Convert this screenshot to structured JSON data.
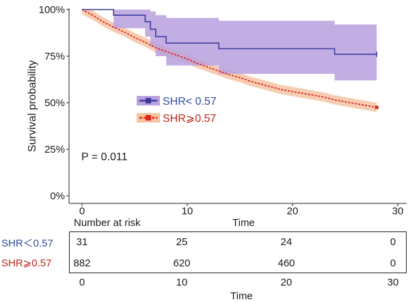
{
  "chart_data": {
    "type": "line",
    "chart_kind": "kaplan-meier survival",
    "ylabel": "Survival probability",
    "xlabel": "Time",
    "xlim": [
      -1,
      30.5
    ],
    "ylim": [
      0,
      1
    ],
    "x_ticks": [
      "0",
      "10",
      "20",
      "30"
    ],
    "y_ticks": [
      "0%",
      "25%",
      "50%",
      "75%",
      "100%"
    ],
    "legend_position": "center-left",
    "annotation": "P = 0.011",
    "series": [
      {
        "name": "SHR< 0.57",
        "color": "#3b3b9c",
        "band_color": "#b9a0de",
        "line_style": "solid",
        "steps": [
          [
            0,
            1.0
          ],
          [
            3,
            0.97
          ],
          [
            6,
            0.935
          ],
          [
            6.5,
            0.895
          ],
          [
            7,
            0.855
          ],
          [
            8,
            0.82
          ],
          [
            13,
            0.79
          ],
          [
            24,
            0.76
          ],
          [
            28,
            0.76
          ]
        ],
        "ci_lower": [
          [
            3,
            0.9
          ],
          [
            6,
            0.855
          ],
          [
            6.5,
            0.8
          ],
          [
            7,
            0.75
          ],
          [
            8,
            0.7
          ],
          [
            13,
            0.655
          ],
          [
            24,
            0.62
          ],
          [
            28,
            0.62
          ]
        ],
        "ci_upper": [
          [
            3,
            1.0
          ],
          [
            6,
            1.0
          ],
          [
            6.5,
            0.99
          ],
          [
            7,
            0.97
          ],
          [
            8,
            0.955
          ],
          [
            13,
            0.94
          ],
          [
            24,
            0.92
          ],
          [
            28,
            0.92
          ]
        ]
      },
      {
        "name": "SHR⩾0.57",
        "color": "#e0251b",
        "band_color": "#f4c4a4",
        "line_style": "dashed",
        "points": [
          [
            0,
            1.0
          ],
          [
            1,
            0.97
          ],
          [
            2,
            0.935
          ],
          [
            3,
            0.905
          ],
          [
            4,
            0.88
          ],
          [
            5,
            0.85
          ],
          [
            6,
            0.825
          ],
          [
            7,
            0.795
          ],
          [
            8,
            0.775
          ],
          [
            9,
            0.755
          ],
          [
            10,
            0.735
          ],
          [
            11,
            0.71
          ],
          [
            12,
            0.69
          ],
          [
            13,
            0.67
          ],
          [
            14,
            0.65
          ],
          [
            15,
            0.635
          ],
          [
            16,
            0.615
          ],
          [
            17,
            0.6
          ],
          [
            18,
            0.585
          ],
          [
            19,
            0.57
          ],
          [
            20,
            0.56
          ],
          [
            21,
            0.55
          ],
          [
            22,
            0.54
          ],
          [
            23,
            0.53
          ],
          [
            24,
            0.515
          ],
          [
            25,
            0.505
          ],
          [
            26,
            0.495
          ],
          [
            27,
            0.485
          ],
          [
            28,
            0.475
          ]
        ],
        "ci_halfwidth": 0.025
      }
    ],
    "risk_table": {
      "title": "Number at risk",
      "x_title": "Time",
      "times": [
        "0",
        "10",
        "20",
        "30"
      ],
      "rows": [
        {
          "name": "SHR＜0.57",
          "color": "#2e4c9e",
          "counts": [
            "31",
            "25",
            "24",
            "0"
          ]
        },
        {
          "name": "SHR⩾0.57",
          "color": "#c0241b",
          "counts": [
            "882",
            "620",
            "460",
            "0"
          ]
        }
      ]
    }
  }
}
